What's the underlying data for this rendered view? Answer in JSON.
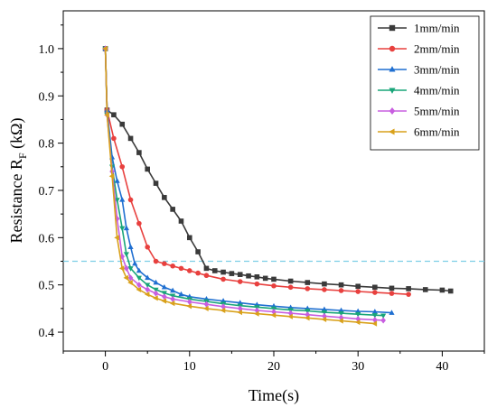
{
  "chart_data": {
    "type": "line",
    "title": "",
    "xlabel": "Time(s)",
    "ylabel_main": "Resistance R",
    "ylabel_sub": "F",
    "ylabel_unit": " (kΩ)",
    "xlim": [
      -5,
      45
    ],
    "ylim": [
      0.36,
      1.08
    ],
    "xticks": [
      0,
      10,
      20,
      30,
      40
    ],
    "yticks": [
      0.4,
      0.5,
      0.6,
      0.7,
      0.8,
      0.9,
      1.0
    ],
    "xtick_labels": [
      "0",
      "10",
      "20",
      "30",
      "40"
    ],
    "ytick_labels": [
      "0.4",
      "0.5",
      "0.6",
      "0.7",
      "0.8",
      "0.9",
      "1.0"
    ],
    "grid": false,
    "legend_position": "top-right",
    "reference_line": {
      "y": 0.55,
      "color": "#7ecfe6",
      "style": "dashed"
    },
    "series": [
      {
        "name": "1mm/min",
        "color": "#3a3a3a",
        "marker": "square",
        "points": [
          [
            0,
            1.0
          ],
          [
            0.2,
            0.87
          ],
          [
            1,
            0.86
          ],
          [
            2,
            0.84
          ],
          [
            3,
            0.81
          ],
          [
            4,
            0.78
          ],
          [
            5,
            0.745
          ],
          [
            6,
            0.715
          ],
          [
            7,
            0.685
          ],
          [
            8,
            0.66
          ],
          [
            9,
            0.635
          ],
          [
            10,
            0.6
          ],
          [
            11,
            0.57
          ],
          [
            12,
            0.535
          ],
          [
            13,
            0.53
          ],
          [
            14,
            0.527
          ],
          [
            15,
            0.524
          ],
          [
            16,
            0.522
          ],
          [
            17,
            0.519
          ],
          [
            18,
            0.517
          ],
          [
            19,
            0.514
          ],
          [
            20,
            0.512
          ],
          [
            22,
            0.508
          ],
          [
            24,
            0.505
          ],
          [
            26,
            0.502
          ],
          [
            28,
            0.5
          ],
          [
            30,
            0.497
          ],
          [
            32,
            0.495
          ],
          [
            34,
            0.493
          ],
          [
            36,
            0.492
          ],
          [
            38,
            0.49
          ],
          [
            40,
            0.489
          ],
          [
            41,
            0.487
          ]
        ]
      },
      {
        "name": "2mm/min",
        "color": "#e8403e",
        "marker": "circle",
        "points": [
          [
            0,
            1.0
          ],
          [
            0.2,
            0.87
          ],
          [
            1,
            0.81
          ],
          [
            2,
            0.75
          ],
          [
            3,
            0.68
          ],
          [
            4,
            0.63
          ],
          [
            5,
            0.58
          ],
          [
            6,
            0.55
          ],
          [
            7,
            0.545
          ],
          [
            8,
            0.54
          ],
          [
            9,
            0.535
          ],
          [
            10,
            0.53
          ],
          [
            11,
            0.525
          ],
          [
            12,
            0.52
          ],
          [
            14,
            0.512
          ],
          [
            16,
            0.507
          ],
          [
            18,
            0.502
          ],
          [
            20,
            0.498
          ],
          [
            22,
            0.495
          ],
          [
            24,
            0.492
          ],
          [
            26,
            0.49
          ],
          [
            28,
            0.488
          ],
          [
            30,
            0.486
          ],
          [
            32,
            0.484
          ],
          [
            34,
            0.482
          ],
          [
            36,
            0.48
          ]
        ]
      },
      {
        "name": "3mm/min",
        "color": "#1f6fd1",
        "marker": "triangle-up",
        "points": [
          [
            0,
            1.0
          ],
          [
            0.2,
            0.87
          ],
          [
            0.8,
            0.77
          ],
          [
            1.4,
            0.72
          ],
          [
            2,
            0.68
          ],
          [
            2.5,
            0.62
          ],
          [
            3,
            0.58
          ],
          [
            3.5,
            0.545
          ],
          [
            4,
            0.53
          ],
          [
            5,
            0.515
          ],
          [
            6,
            0.505
          ],
          [
            7,
            0.495
          ],
          [
            8,
            0.488
          ],
          [
            9,
            0.48
          ],
          [
            10,
            0.475
          ],
          [
            12,
            0.47
          ],
          [
            14,
            0.466
          ],
          [
            16,
            0.462
          ],
          [
            18,
            0.458
          ],
          [
            20,
            0.455
          ],
          [
            22,
            0.452
          ],
          [
            24,
            0.45
          ],
          [
            26,
            0.448
          ],
          [
            28,
            0.446
          ],
          [
            30,
            0.444
          ],
          [
            32,
            0.443
          ],
          [
            34,
            0.441
          ]
        ]
      },
      {
        "name": "4mm/min",
        "color": "#19a579",
        "marker": "triangle-down",
        "points": [
          [
            0,
            1.0
          ],
          [
            0.2,
            0.86
          ],
          [
            0.8,
            0.75
          ],
          [
            1.4,
            0.68
          ],
          [
            2,
            0.62
          ],
          [
            2.5,
            0.565
          ],
          [
            3,
            0.535
          ],
          [
            4,
            0.515
          ],
          [
            5,
            0.5
          ],
          [
            6,
            0.49
          ],
          [
            7,
            0.483
          ],
          [
            8,
            0.477
          ],
          [
            10,
            0.47
          ],
          [
            12,
            0.465
          ],
          [
            14,
            0.46
          ],
          [
            16,
            0.456
          ],
          [
            18,
            0.453
          ],
          [
            20,
            0.45
          ],
          [
            22,
            0.447
          ],
          [
            24,
            0.445
          ],
          [
            26,
            0.442
          ],
          [
            28,
            0.44
          ],
          [
            30,
            0.438
          ],
          [
            32,
            0.436
          ],
          [
            33,
            0.435
          ]
        ]
      },
      {
        "name": "5mm/min",
        "color": "#c85ee0",
        "marker": "diamond",
        "points": [
          [
            0,
            1.0
          ],
          [
            0.2,
            0.86
          ],
          [
            0.8,
            0.74
          ],
          [
            1.4,
            0.64
          ],
          [
            2,
            0.56
          ],
          [
            2.5,
            0.535
          ],
          [
            3,
            0.515
          ],
          [
            4,
            0.5
          ],
          [
            5,
            0.49
          ],
          [
            6,
            0.482
          ],
          [
            7,
            0.475
          ],
          [
            8,
            0.47
          ],
          [
            10,
            0.464
          ],
          [
            12,
            0.459
          ],
          [
            14,
            0.454
          ],
          [
            16,
            0.45
          ],
          [
            18,
            0.446
          ],
          [
            20,
            0.443
          ],
          [
            22,
            0.44
          ],
          [
            24,
            0.437
          ],
          [
            26,
            0.434
          ],
          [
            28,
            0.431
          ],
          [
            30,
            0.428
          ],
          [
            32,
            0.426
          ],
          [
            33,
            0.425
          ]
        ]
      },
      {
        "name": "6mm/min",
        "color": "#d9a11b",
        "marker": "triangle-left",
        "points": [
          [
            0,
            1.0
          ],
          [
            0.2,
            0.86
          ],
          [
            0.8,
            0.73
          ],
          [
            1.4,
            0.6
          ],
          [
            2,
            0.535
          ],
          [
            2.5,
            0.515
          ],
          [
            3,
            0.505
          ],
          [
            4,
            0.49
          ],
          [
            5,
            0.48
          ],
          [
            6,
            0.472
          ],
          [
            7,
            0.466
          ],
          [
            8,
            0.461
          ],
          [
            10,
            0.455
          ],
          [
            12,
            0.45
          ],
          [
            14,
            0.446
          ],
          [
            16,
            0.442
          ],
          [
            18,
            0.439
          ],
          [
            20,
            0.436
          ],
          [
            22,
            0.433
          ],
          [
            24,
            0.43
          ],
          [
            26,
            0.427
          ],
          [
            28,
            0.424
          ],
          [
            30,
            0.421
          ],
          [
            32,
            0.418
          ]
        ]
      }
    ]
  }
}
